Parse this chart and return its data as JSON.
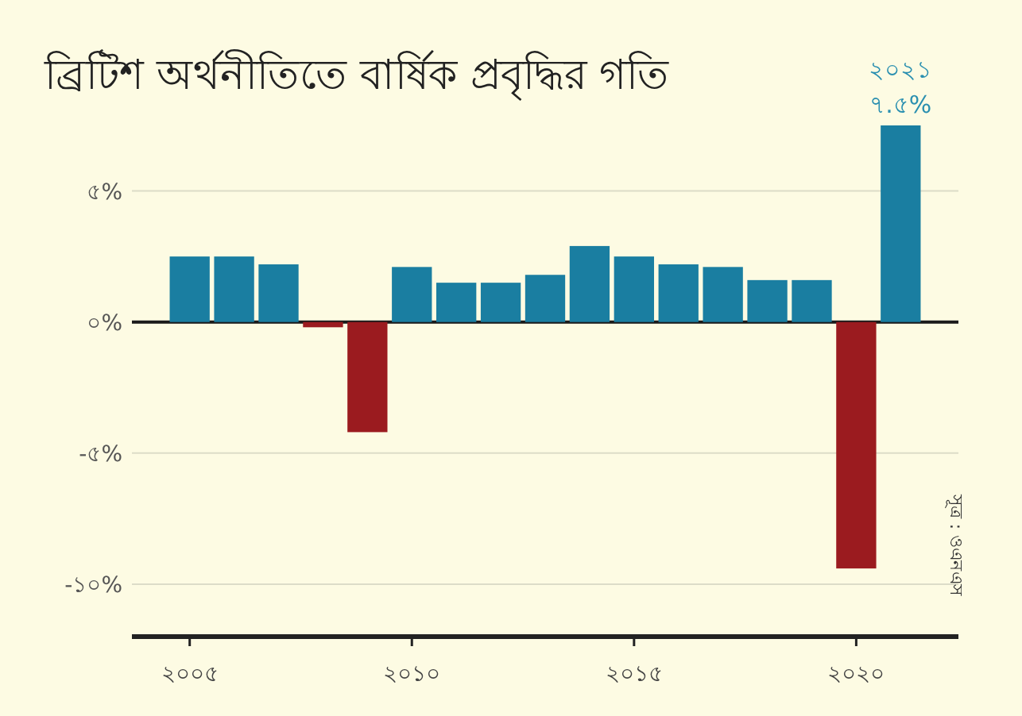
{
  "chart_data": {
    "type": "bar",
    "title": "ব্রিটিশ অর্থনীতিতে বার্ষিক প্রবৃদ্ধির গতি",
    "x": [
      2005,
      2006,
      2007,
      2008,
      2009,
      2010,
      2011,
      2012,
      2013,
      2014,
      2015,
      2016,
      2017,
      2018,
      2019,
      2020,
      2021
    ],
    "values": [
      2.5,
      2.5,
      2.2,
      -0.2,
      -4.2,
      2.1,
      1.5,
      1.5,
      1.8,
      2.9,
      2.5,
      2.2,
      2.1,
      1.6,
      1.6,
      -9.4,
      7.5
    ],
    "colors": [
      "#1a7ea1",
      "#1a7ea1",
      "#1a7ea1",
      "#9b1b1f",
      "#9b1b1f",
      "#1a7ea1",
      "#1a7ea1",
      "#1a7ea1",
      "#1a7ea1",
      "#1a7ea1",
      "#1a7ea1",
      "#1a7ea1",
      "#1a7ea1",
      "#1a7ea1",
      "#1a7ea1",
      "#9b1b1f",
      "#1a7ea1"
    ],
    "xlim": [
      2003.7,
      2022.3
    ],
    "xticks": [
      {
        "value": 2005,
        "label": "২০০৫"
      },
      {
        "value": 2010,
        "label": "২০১০"
      },
      {
        "value": 2015,
        "label": "২০১৫"
      },
      {
        "value": 2020,
        "label": "২০২০"
      }
    ],
    "yticks": [
      {
        "value": 5,
        "label": "৫%"
      },
      {
        "value": 0,
        "label": "০%"
      },
      {
        "value": -5,
        "label": "-৫%"
      },
      {
        "value": -10,
        "label": "-১০%"
      }
    ],
    "ylim": [
      -12,
      7.5
    ],
    "grid": "y",
    "ref_lines": [
      {
        "axis": "y",
        "value": 0,
        "color": "#1a1a1a"
      }
    ],
    "annotations": [
      {
        "text": "২০২১",
        "x": 2021,
        "y": 7.5
      },
      {
        "text": "৭.৫%",
        "x": 2021,
        "y": 7.5
      },
      "সূত্র : ওএনএস"
    ]
  }
}
